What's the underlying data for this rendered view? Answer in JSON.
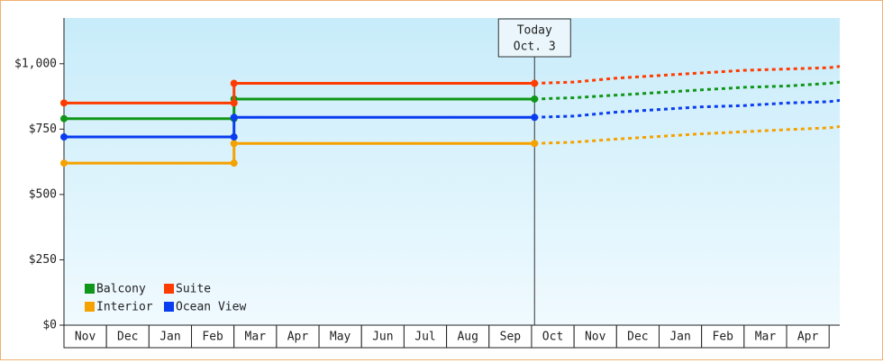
{
  "chart_data": {
    "type": "line",
    "categories": [
      "Nov",
      "Dec",
      "Jan",
      "Feb",
      "Mar",
      "Apr",
      "May",
      "Jun",
      "Jul",
      "Aug",
      "Sep",
      "Oct",
      "Nov",
      "Dec",
      "Jan",
      "Feb",
      "Mar",
      "Apr"
    ],
    "xlim": [
      0,
      18.25
    ],
    "ylim": [
      0,
      1175
    ],
    "yticks": [
      {
        "value": 0,
        "label": "$0"
      },
      {
        "value": 250,
        "label": "$250"
      },
      {
        "value": 500,
        "label": "$500"
      },
      {
        "value": 750,
        "label": "$750"
      },
      {
        "value": 1000,
        "label": "$1,000"
      }
    ],
    "today": {
      "x": 11.07,
      "label": "Today",
      "date": "Oct. 3"
    },
    "forecast_x": [
      11.07,
      12,
      13,
      14,
      15,
      16,
      17,
      18,
      18.25
    ],
    "series": [
      {
        "name": "Balcony",
        "color": "#109618",
        "x": [
          0,
          4,
          4,
          11.07
        ],
        "values": [
          790,
          790,
          865,
          865
        ],
        "forecast_values": [
          865,
          870,
          880,
          890,
          900,
          910,
          915,
          925,
          930
        ]
      },
      {
        "name": "Suite",
        "color": "#ff3c00",
        "x": [
          0,
          4,
          4,
          11.07
        ],
        "values": [
          850,
          850,
          925,
          925
        ],
        "forecast_values": [
          925,
          930,
          945,
          955,
          965,
          975,
          980,
          985,
          990
        ]
      },
      {
        "name": "Interior",
        "color": "#f5a200",
        "x": [
          0,
          4,
          4,
          11.07
        ],
        "values": [
          620,
          620,
          695,
          695
        ],
        "forecast_values": [
          695,
          700,
          712,
          722,
          732,
          740,
          748,
          755,
          760
        ]
      },
      {
        "name": "Ocean View",
        "color": "#0a3cf0",
        "x": [
          0,
          4,
          4,
          11.07
        ],
        "values": [
          720,
          720,
          795,
          795
        ],
        "forecast_values": [
          795,
          800,
          815,
          825,
          835,
          840,
          850,
          855,
          860
        ]
      }
    ]
  }
}
